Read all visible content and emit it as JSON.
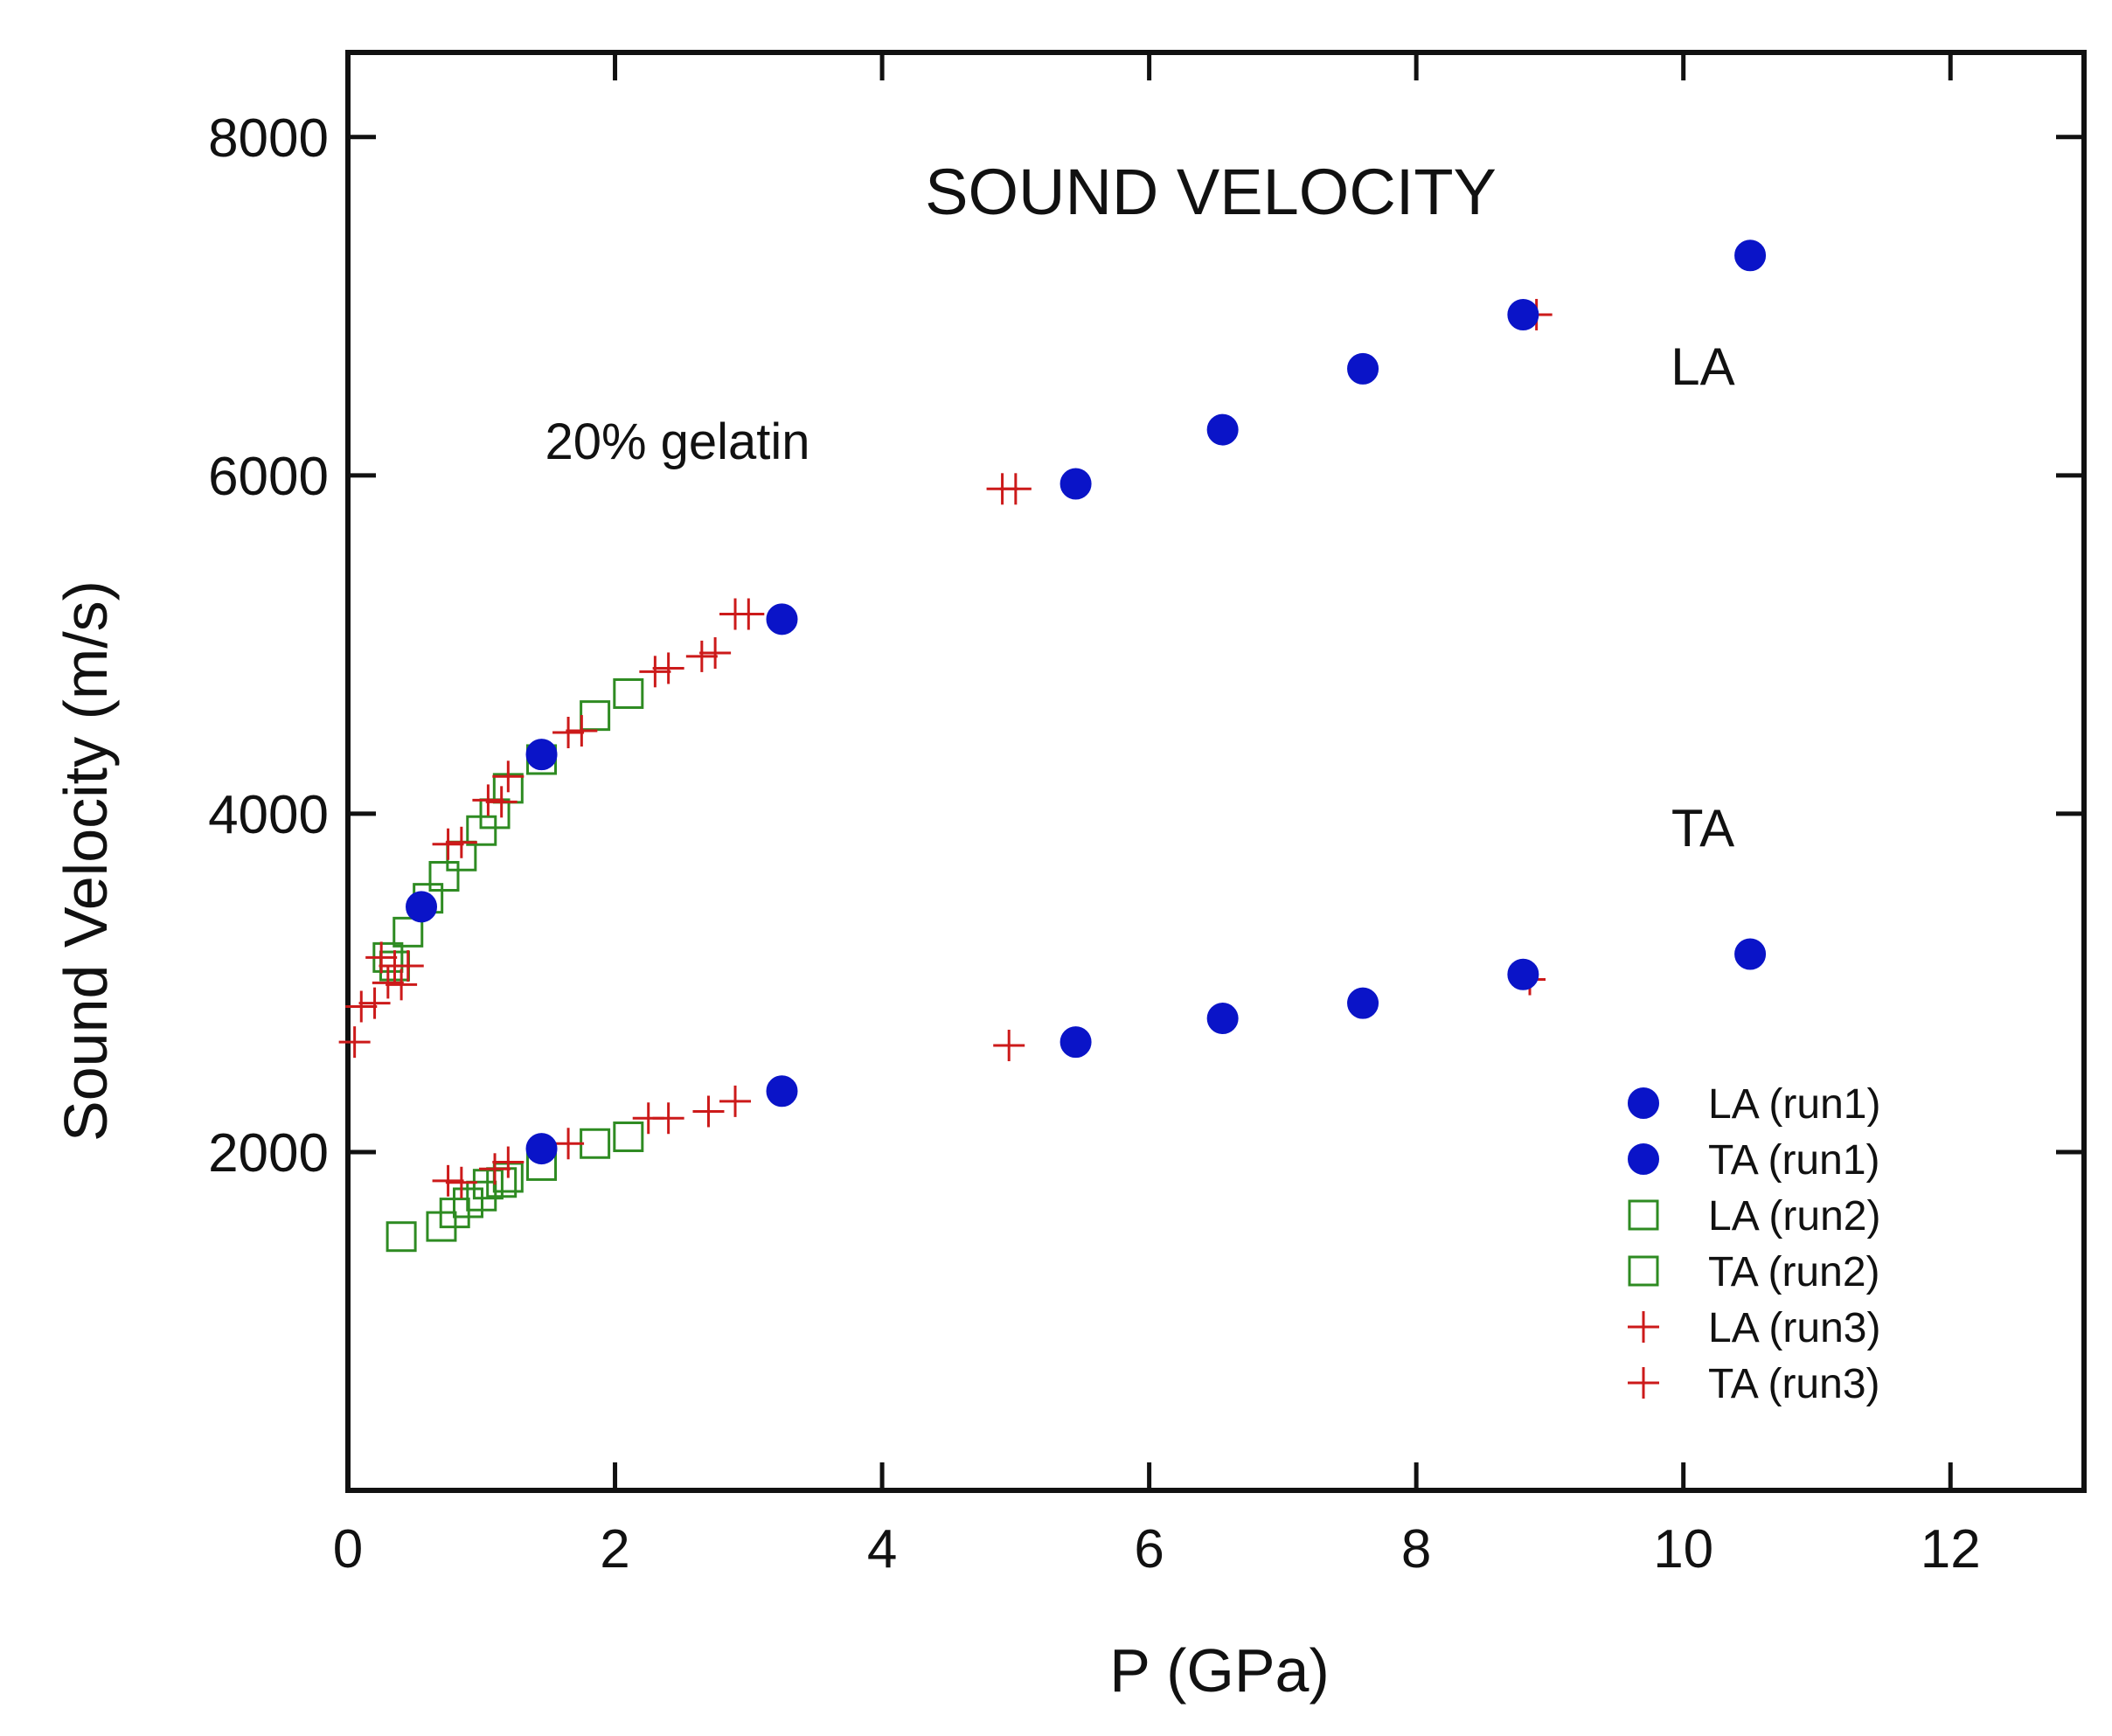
{
  "chart_data": {
    "type": "scatter",
    "title": "SOUND VELOCITY",
    "xlabel": "P (GPa)",
    "ylabel": "Sound Velocity (m/s)",
    "xlim": [
      0,
      13
    ],
    "ylim": [
      0,
      8500
    ],
    "x_ticks": [
      0,
      2,
      4,
      6,
      8,
      10,
      12
    ],
    "y_ticks": [
      2000,
      4000,
      6000,
      8000
    ],
    "x_tick_labels": [
      "0",
      "2",
      "4",
      "6",
      "8",
      "10",
      "12"
    ],
    "y_tick_labels": [
      "2000",
      "4000",
      "6000",
      "8000"
    ],
    "legend_position": "bottom-right",
    "annotations": [
      {
        "id": "sample",
        "text": "20% gelatin"
      },
      {
        "id": "la",
        "text": "LA"
      },
      {
        "id": "ta",
        "text": "TA"
      }
    ],
    "colors": {
      "run1": "#0a14c8",
      "run2": "#2e8b22",
      "run3": "#cc1a1a"
    },
    "series": [
      {
        "name": "LA (run1)",
        "marker": "circle",
        "color": "#0a14c8",
        "points": [
          [
            0.55,
            3450
          ],
          [
            1.45,
            4350
          ],
          [
            3.25,
            5150
          ],
          [
            5.45,
            5950
          ],
          [
            6.55,
            6270
          ],
          [
            7.6,
            6630
          ],
          [
            8.8,
            6950
          ],
          [
            10.5,
            7300
          ]
        ]
      },
      {
        "name": "TA (run1)",
        "marker": "circle",
        "color": "#0a14c8",
        "points": [
          [
            1.45,
            2020
          ],
          [
            3.25,
            2360
          ],
          [
            5.45,
            2650
          ],
          [
            6.55,
            2790
          ],
          [
            7.6,
            2880
          ],
          [
            8.8,
            3050
          ],
          [
            10.5,
            3170
          ]
        ]
      },
      {
        "name": "LA (run2)",
        "marker": "square",
        "color": "#2e8b22",
        "points": [
          [
            0.3,
            3150
          ],
          [
            0.35,
            3100
          ],
          [
            0.45,
            3300
          ],
          [
            0.6,
            3500
          ],
          [
            0.72,
            3630
          ],
          [
            0.85,
            3750
          ],
          [
            1.0,
            3900
          ],
          [
            1.1,
            4000
          ],
          [
            1.2,
            4150
          ],
          [
            1.45,
            4320
          ],
          [
            1.85,
            4580
          ],
          [
            2.1,
            4710
          ]
        ]
      },
      {
        "name": "TA (run2)",
        "marker": "square",
        "color": "#2e8b22",
        "points": [
          [
            0.4,
            1500
          ],
          [
            0.7,
            1560
          ],
          [
            0.8,
            1640
          ],
          [
            0.9,
            1700
          ],
          [
            1.0,
            1740
          ],
          [
            1.05,
            1810
          ],
          [
            1.15,
            1820
          ],
          [
            1.2,
            1850
          ],
          [
            1.45,
            1920
          ],
          [
            1.85,
            2050
          ],
          [
            2.1,
            2090
          ]
        ]
      },
      {
        "name": "LA (run3)",
        "marker": "plus",
        "color": "#cc1a1a",
        "points": [
          [
            0.05,
            2650
          ],
          [
            0.1,
            2860
          ],
          [
            0.2,
            2880
          ],
          [
            0.25,
            3150
          ],
          [
            0.3,
            3000
          ],
          [
            0.35,
            3100
          ],
          [
            0.4,
            2990
          ],
          [
            0.45,
            3100
          ],
          [
            0.75,
            3820
          ],
          [
            0.85,
            3830
          ],
          [
            1.05,
            4080
          ],
          [
            1.15,
            4070
          ],
          [
            1.2,
            4220
          ],
          [
            1.65,
            4480
          ],
          [
            1.75,
            4490
          ],
          [
            2.3,
            4840
          ],
          [
            2.4,
            4860
          ],
          [
            2.65,
            4930
          ],
          [
            2.75,
            4950
          ],
          [
            2.9,
            5180
          ],
          [
            3.0,
            5180
          ],
          [
            4.9,
            5920
          ],
          [
            5.0,
            5920
          ],
          [
            8.9,
            6950
          ]
        ]
      },
      {
        "name": "TA (run3)",
        "marker": "plus",
        "color": "#cc1a1a",
        "points": [
          [
            0.75,
            1830
          ],
          [
            0.85,
            1820
          ],
          [
            1.1,
            1900
          ],
          [
            1.2,
            1940
          ],
          [
            1.65,
            2050
          ],
          [
            2.25,
            2200
          ],
          [
            2.4,
            2200
          ],
          [
            2.7,
            2240
          ],
          [
            2.9,
            2300
          ],
          [
            4.95,
            2630
          ],
          [
            8.85,
            3020
          ]
        ]
      }
    ]
  }
}
